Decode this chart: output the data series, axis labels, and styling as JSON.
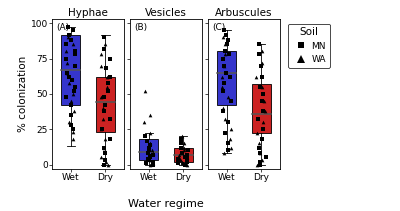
{
  "panels": [
    "Hyphae",
    "Vesicles",
    "Arbuscules"
  ],
  "panel_labels": [
    "(A)",
    "(B)",
    "(C)"
  ],
  "groups": [
    "Wet",
    "Dry"
  ],
  "xlabel": "Water regime",
  "ylabel": "% colonization",
  "ylim": [
    -3,
    103
  ],
  "yticks": [
    0,
    25,
    50,
    75,
    100
  ],
  "colors": {
    "Wet": "#3535CC",
    "Dry": "#CC2222"
  },
  "legend_title": "Soil",
  "box_stats": {
    "Hyphae": {
      "wet": {
        "q1": 42,
        "med": 67,
        "q3": 92,
        "wlo": 13,
        "whi": 97
      },
      "dry": {
        "q1": 23,
        "med": 44,
        "q3": 62,
        "wlo": 0,
        "whi": 92
      }
    },
    "Vesicles": {
      "wet": {
        "q1": 3,
        "med": 9,
        "q3": 18,
        "wlo": 0,
        "whi": 22
      },
      "dry": {
        "q1": 2,
        "med": 7,
        "q3": 12,
        "wlo": 0,
        "whi": 20
      }
    },
    "Arbuscules": {
      "wet": {
        "q1": 42,
        "med": 65,
        "q3": 80,
        "wlo": 8,
        "whi": 95
      },
      "dry": {
        "q1": 22,
        "med": 36,
        "q3": 57,
        "wlo": 0,
        "whi": 85
      }
    }
  },
  "scatter": {
    "Hyphae": {
      "wet_sq": [
        97,
        95,
        92,
        88,
        85,
        80,
        78,
        75,
        70,
        65,
        62,
        60,
        55,
        52,
        48,
        42,
        35,
        28,
        25
      ],
      "wet_tr": [
        90,
        85,
        80,
        72,
        65,
        58,
        50,
        45,
        38,
        30,
        23,
        18
      ],
      "dry_sq": [
        90,
        82,
        75,
        68,
        62,
        58,
        52,
        48,
        42,
        38,
        32,
        25,
        18,
        12,
        8,
        3,
        0
      ],
      "dry_tr": [
        85,
        78,
        70,
        62,
        55,
        48,
        40,
        32,
        25,
        18,
        12,
        5,
        2,
        0
      ]
    },
    "Vesicles": {
      "wet_sq": [
        20,
        17,
        14,
        12,
        10,
        8,
        7,
        6,
        5,
        4,
        3,
        2,
        1,
        0
      ],
      "wet_tr": [
        52,
        35,
        30,
        22,
        15,
        10,
        8,
        5,
        3,
        1,
        0
      ],
      "dry_sq": [
        18,
        15,
        12,
        10,
        8,
        7,
        6,
        5,
        4,
        3,
        2,
        1,
        0
      ],
      "dry_tr": [
        20,
        15,
        12,
        10,
        8,
        7,
        6,
        5,
        4,
        3,
        2,
        1,
        0
      ]
    },
    "Arbuscules": {
      "wet_sq": [
        95,
        92,
        88,
        85,
        80,
        78,
        75,
        70,
        65,
        62,
        58,
        52,
        45,
        38,
        30,
        22,
        15,
        10
      ],
      "wet_tr": [
        90,
        85,
        78,
        70,
        62,
        55,
        48,
        40,
        32,
        25,
        18,
        12,
        8
      ],
      "dry_sq": [
        85,
        78,
        70,
        62,
        55,
        50,
        45,
        38,
        32,
        25,
        18,
        12,
        8,
        5,
        2,
        0
      ],
      "dry_tr": [
        80,
        72,
        62,
        55,
        45,
        38,
        30,
        22,
        15,
        8,
        3,
        0
      ]
    }
  }
}
